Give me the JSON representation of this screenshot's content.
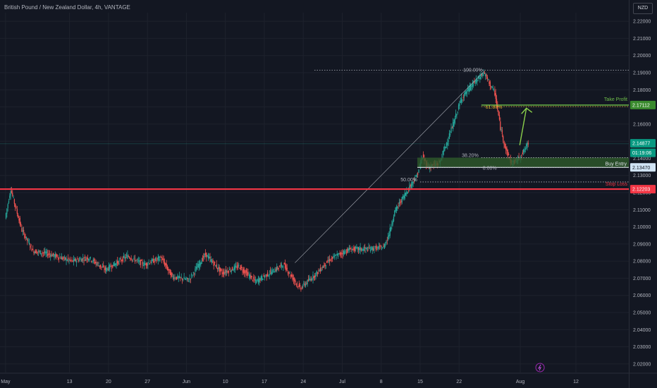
{
  "header": {
    "title": "British Pound / New Zealand Dollar, 4h, VANTAGE",
    "currency": "NZD"
  },
  "colors": {
    "bg": "#131722",
    "grid": "#1e222d",
    "up": "#26a69a",
    "down": "#ef5350",
    "text": "#b2b5be",
    "stop": "#f23645",
    "green": "#4caf50",
    "buy_fill": "#2e5a2b"
  },
  "icons": {
    "flash": "lightning-icon"
  },
  "chart_data": {
    "type": "candlestick",
    "ylim": [
      2.015,
      2.225
    ],
    "yticks": [
      2.22,
      2.21,
      2.2,
      2.19,
      2.18,
      2.17,
      2.16,
      2.15,
      2.14,
      2.13,
      2.12,
      2.11,
      2.1,
      2.09,
      2.08,
      2.07,
      2.06,
      2.05,
      2.04,
      2.03,
      2.02
    ],
    "ytick_labels": [
      "2.22000",
      "2.21000",
      "2.20000",
      "2.19000",
      "2.18000",
      "2.17000",
      "2.16000",
      "2.15000",
      "2.14000",
      "2.13000",
      "2.12000",
      "2.11000",
      "2.10000",
      "2.09000",
      "2.08000",
      "2.07000",
      "2.06000",
      "2.05000",
      "2.04000",
      "2.03000",
      "2.02000"
    ],
    "x_ticks": [
      "May",
      "13",
      "20",
      "27",
      "Jun",
      "10",
      "17",
      "24",
      "Jul",
      "8",
      "15",
      "22",
      "Aug",
      "12"
    ],
    "x_tick_pos": [
      0,
      11.5,
      18.5,
      25.5,
      32.5,
      39.5,
      46.5,
      53.5,
      60.5,
      67.5,
      74.5,
      81.5,
      92.5,
      102.5
    ],
    "x_range": [
      -1,
      112
    ],
    "path_x": [
      0,
      1,
      3,
      5,
      8,
      12,
      15,
      18,
      22,
      25,
      28,
      30,
      33,
      36,
      39,
      42,
      45,
      48,
      50,
      53,
      56,
      58,
      60,
      62,
      65,
      68,
      69,
      70,
      72,
      74,
      75,
      76,
      78,
      80,
      82,
      84,
      86,
      88,
      89,
      90,
      91,
      92,
      93,
      94
    ],
    "path_y": [
      2.105,
      2.122,
      2.098,
      2.086,
      2.084,
      2.08,
      2.082,
      2.075,
      2.083,
      2.078,
      2.082,
      2.071,
      2.069,
      2.084,
      2.073,
      2.077,
      2.068,
      2.074,
      2.078,
      2.064,
      2.073,
      2.08,
      2.084,
      2.087,
      2.087,
      2.088,
      2.096,
      2.109,
      2.12,
      2.13,
      2.141,
      2.135,
      2.137,
      2.155,
      2.175,
      2.183,
      2.19,
      2.178,
      2.158,
      2.145,
      2.137,
      2.139,
      2.143,
      2.149
    ],
    "fib_levels": [
      {
        "label": "100.00%",
        "price": 2.1915
      },
      {
        "label": "61.80%",
        "price": 2.1702
      },
      {
        "label": "38.20%",
        "price": 2.1404
      },
      {
        "label": "50.00%",
        "price": 2.1262
      },
      {
        "label": "0.00%",
        "price": 2.1347
      }
    ],
    "price_labels": [
      {
        "text": "2.17112",
        "price": 2.17112,
        "kind": "tp"
      },
      {
        "text": "2.14877",
        "price": 2.14877,
        "kind": "last"
      },
      {
        "text": "01:19:06",
        "price": 2.1432,
        "kind": "countdown"
      },
      {
        "text": "2.13470",
        "price": 2.1347,
        "kind": "entry"
      },
      {
        "text": "2.12203",
        "price": 2.12203,
        "kind": "stop"
      }
    ],
    "annotations": {
      "take_profit": "Take Profit",
      "buy_entry": "Buy Entry",
      "stop_loss": "Stop Loss"
    },
    "stop_price": 2.12203,
    "entry_zone": [
      2.1347,
      2.1404
    ],
    "entry_x": [
      74,
      94
    ],
    "fib_x_start": [
      55.5,
      85.5,
      85.5,
      74.5,
      75.5
    ],
    "tp_x_start": 85.5,
    "arrow": {
      "from": [
        92.4,
        2.1477
      ],
      "to": [
        93.6,
        2.1693
      ]
    },
    "swing_line": {
      "from": [
        52,
        2.079
      ],
      "to": [
        86,
        2.1908
      ]
    }
  }
}
